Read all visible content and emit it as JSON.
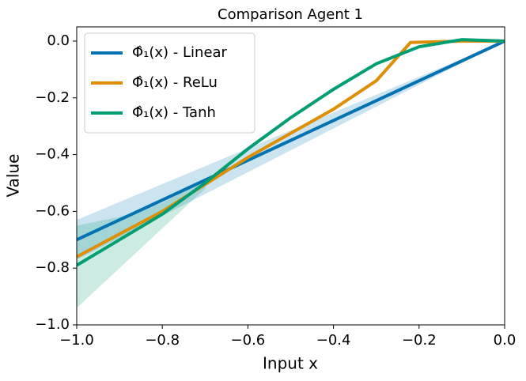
{
  "chart_data": {
    "type": "line",
    "title": "Comparison Agent 1",
    "xlabel": "Input x",
    "ylabel": "Value",
    "xlim": [
      -1,
      0
    ],
    "ylim": [
      -1,
      0.05
    ],
    "xticks": [
      {
        "value": -1,
        "label": "−1.0"
      },
      {
        "value": -0.8,
        "label": "−0.8"
      },
      {
        "value": -0.6,
        "label": "−0.6"
      },
      {
        "value": -0.4,
        "label": "−0.4"
      },
      {
        "value": -0.2,
        "label": "−0.2"
      },
      {
        "value": 0,
        "label": "0.0"
      }
    ],
    "yticks": [
      {
        "value": -1,
        "label": "−1.0"
      },
      {
        "value": -0.8,
        "label": "−0.8"
      },
      {
        "value": -0.6,
        "label": "−0.6"
      },
      {
        "value": -0.4,
        "label": "−0.4"
      },
      {
        "value": -0.2,
        "label": "−0.2"
      },
      {
        "value": 0,
        "label": "0.0"
      }
    ],
    "legend": "upper left",
    "grid": false,
    "series": [
      {
        "name": "Φ̂₁(x) - Linear",
        "color": "#0173b2",
        "x": [
          -1,
          -0.8,
          -0.6,
          -0.4,
          -0.2,
          0
        ],
        "values": [
          -0.7,
          -0.56,
          -0.42,
          -0.28,
          -0.14,
          0
        ],
        "lower": [
          -0.77,
          -0.616,
          -0.462,
          -0.308,
          -0.154,
          0
        ],
        "upper": [
          -0.63,
          -0.504,
          -0.378,
          -0.252,
          -0.126,
          0
        ]
      },
      {
        "name": "Φ̂₁(x) - ReLu",
        "color": "#de8f05",
        "x": [
          -1,
          -0.8,
          -0.6,
          -0.4,
          -0.3,
          -0.22,
          -0.1,
          0
        ],
        "values": [
          -0.76,
          -0.6,
          -0.41,
          -0.24,
          -0.14,
          -0.005,
          0,
          0
        ]
      },
      {
        "name": "Φ̂₁(x) - Tanh",
        "color": "#029e73",
        "x": [
          -1,
          -0.9,
          -0.8,
          -0.7,
          -0.6,
          -0.5,
          -0.4,
          -0.3,
          -0.2,
          -0.1,
          0
        ],
        "values": [
          -0.79,
          -0.7,
          -0.61,
          -0.5,
          -0.38,
          -0.27,
          -0.17,
          -0.08,
          -0.02,
          0.005,
          0
        ],
        "lower": [
          -0.94,
          -0.8,
          -0.66,
          -0.52,
          null,
          null,
          null,
          null,
          null,
          null,
          null
        ],
        "upper": [
          -0.65,
          -0.62,
          -0.57,
          -0.49,
          null,
          null,
          null,
          null,
          null,
          null,
          null
        ]
      }
    ]
  }
}
